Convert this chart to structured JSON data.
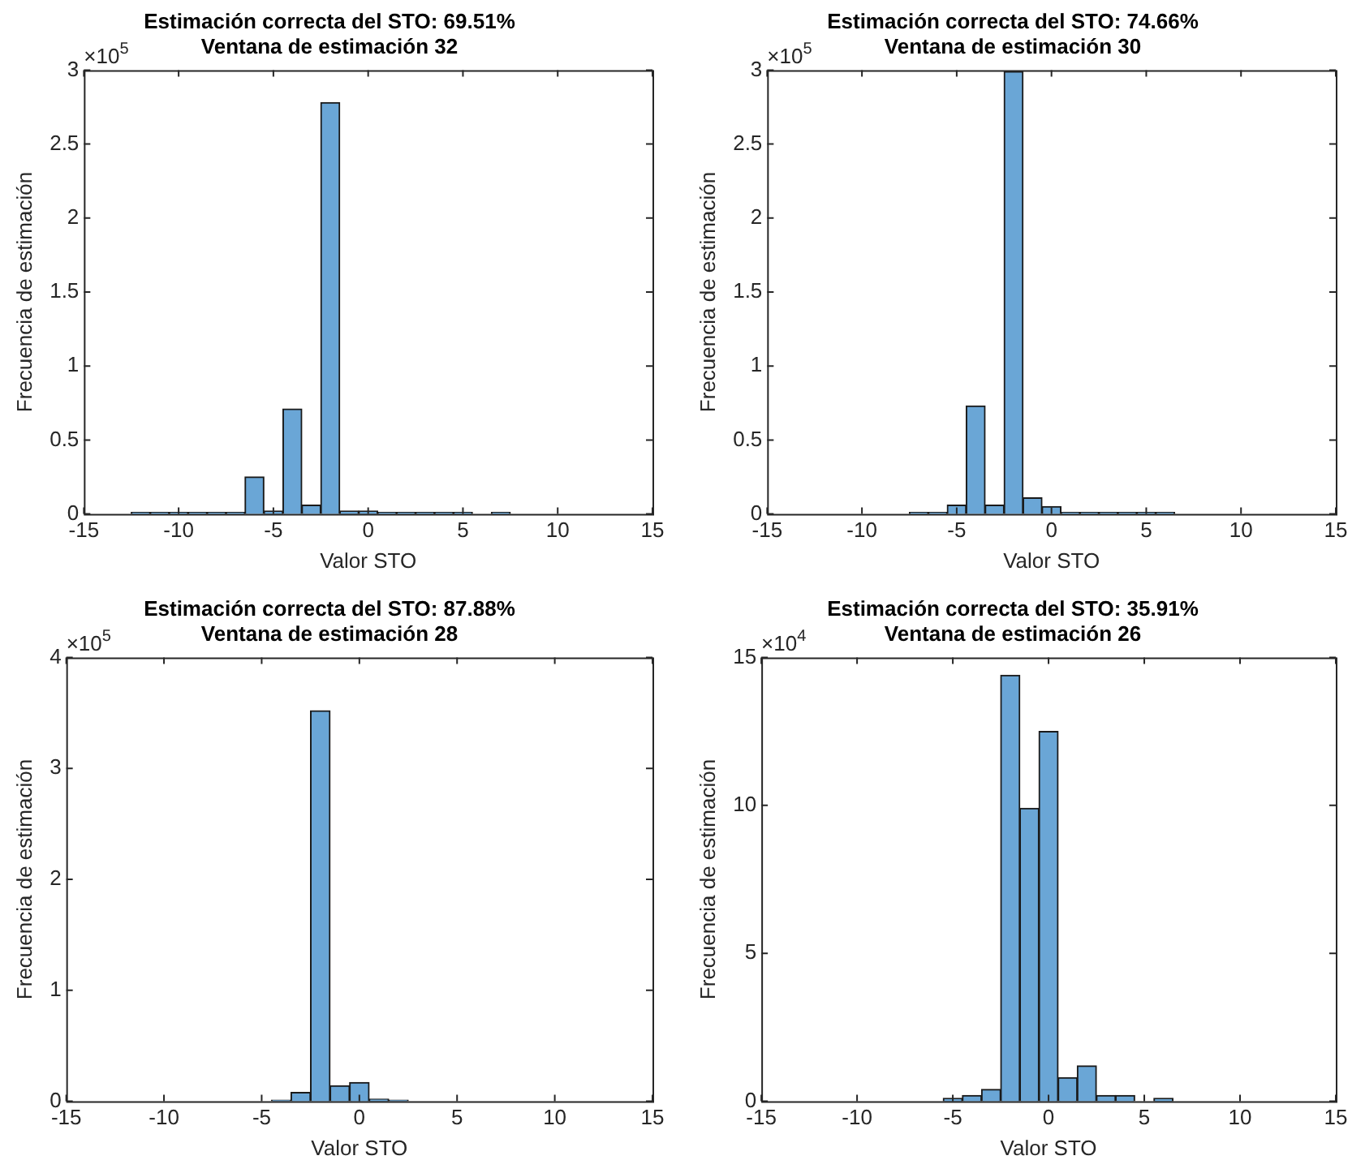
{
  "chart_data": [
    {
      "type": "histogram",
      "title": "Estimación correcta del STO: 69.51%",
      "subtitle": "Ventana de estimación 32",
      "xlabel": "Valor STO",
      "ylabel": "Frecuencia de estimación",
      "annotations": [
        "×10$^{5}$"
      ],
      "color": "#6aa6d6",
      "bins": [
        -12.5,
        -11.5,
        -10.5,
        -9.5,
        -8.5,
        -7.5,
        -6.5,
        -5.5,
        -4.5,
        -3.5,
        -2.5,
        -1.5,
        -0.5,
        0.5,
        1.5,
        2.5,
        3.5,
        4.5,
        5.5,
        6.5,
        7.5
      ],
      "values": [
        0.01,
        0.01,
        0.01,
        0.01,
        0.01,
        0.01,
        0.25,
        0.02,
        0.71,
        0.06,
        2.78,
        0.02,
        0.02,
        0.01,
        0.01,
        0.01,
        0.01,
        0.01,
        0,
        0.01
      ],
      "xlim": [
        -15,
        15
      ],
      "xticks": [
        -15,
        -10,
        -5,
        0,
        5,
        10,
        15
      ],
      "ylim": [
        0,
        3
      ],
      "yticks": [
        0,
        0.5,
        1,
        1.5,
        2,
        2.5,
        3
      ],
      "grid": false,
      "legend": false
    },
    {
      "type": "histogram",
      "title": "Estimación correcta del STO: 74.66%",
      "subtitle": "Ventana de estimación 30",
      "xlabel": "Valor STO",
      "ylabel": "Frecuencia de estimación",
      "annotations": [
        "×10$^{5}$"
      ],
      "color": "#6aa6d6",
      "bins": [
        -7.5,
        -6.5,
        -5.5,
        -4.5,
        -3.5,
        -2.5,
        -1.5,
        -0.5,
        0.5,
        1.5,
        2.5,
        3.5,
        4.5,
        5.5,
        6.5
      ],
      "values": [
        0.01,
        0.01,
        0.06,
        0.73,
        0.06,
        2.99,
        0.11,
        0.05,
        0.01,
        0.01,
        0.01,
        0.01,
        0.01,
        0.01
      ],
      "xlim": [
        -15,
        15
      ],
      "xticks": [
        -15,
        -10,
        -5,
        0,
        5,
        10,
        15
      ],
      "ylim": [
        0,
        3
      ],
      "yticks": [
        0,
        0.5,
        1,
        1.5,
        2,
        2.5,
        3
      ],
      "grid": false,
      "legend": false
    },
    {
      "type": "histogram",
      "title": "Estimación correcta del STO: 87.88%",
      "subtitle": "Ventana de estimación 28",
      "xlabel": "Valor STO",
      "ylabel": "Frecuencia de estimación",
      "annotations": [
        "×10$^{5}$"
      ],
      "color": "#6aa6d6",
      "bins": [
        -4.5,
        -3.5,
        -2.5,
        -1.5,
        -0.5,
        0.5,
        1.5,
        2.5
      ],
      "values": [
        0.01,
        0.08,
        3.52,
        0.14,
        0.17,
        0.02,
        0.01
      ],
      "xlim": [
        -15,
        15
      ],
      "xticks": [
        -15,
        -10,
        -5,
        0,
        5,
        10,
        15
      ],
      "ylim": [
        0,
        4
      ],
      "yticks": [
        0,
        1,
        2,
        3,
        4
      ],
      "grid": false,
      "legend": false
    },
    {
      "type": "histogram",
      "title": "Estimación correcta del STO: 35.91%",
      "subtitle": "Ventana de estimación 26",
      "xlabel": "Valor STO",
      "ylabel": "Frecuencia de estimación",
      "annotations": [
        "×10$^{4}$"
      ],
      "color": "#6aa6d6",
      "bins": [
        -5.5,
        -4.5,
        -3.5,
        -2.5,
        -1.5,
        -0.5,
        0.5,
        1.5,
        2.5,
        3.5,
        4.5,
        5.5,
        6.5
      ],
      "values": [
        0.1,
        0.2,
        0.4,
        14.4,
        9.9,
        12.5,
        0.8,
        1.2,
        0.2,
        0.2,
        0,
        0.1
      ],
      "xlim": [
        -15,
        15
      ],
      "xticks": [
        -15,
        -10,
        -5,
        0,
        5,
        10,
        15
      ],
      "ylim": [
        0,
        15
      ],
      "yticks": [
        0,
        5,
        10,
        15
      ],
      "grid": false,
      "legend": false
    }
  ]
}
